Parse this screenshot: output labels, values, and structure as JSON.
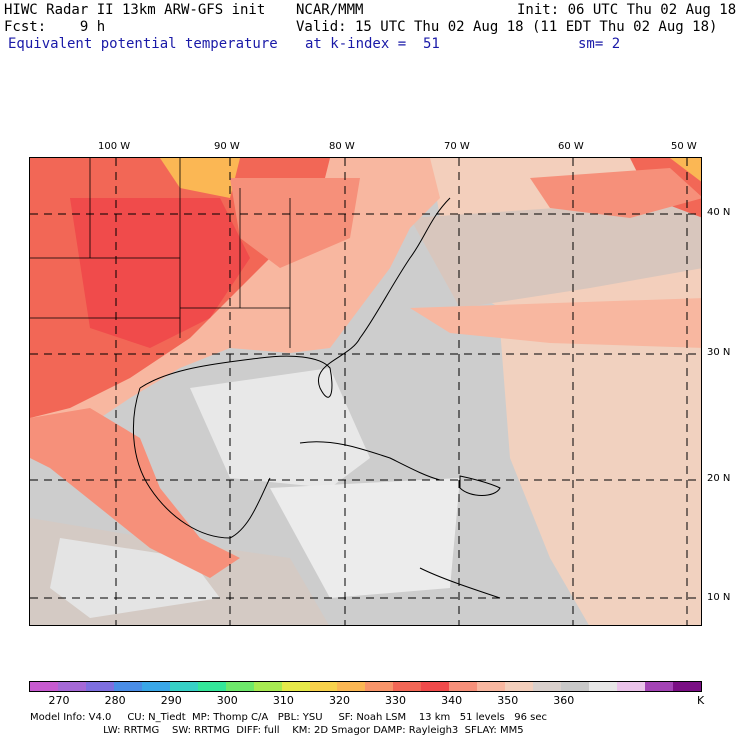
{
  "header": {
    "line1_left": "HIWC Radar II 13km ARW-GFS init",
    "line1_mid": "NCAR/MMM",
    "line1_right": "Init: 06 UTC Thu 02 Aug 18",
    "fcst": "Fcst:    9 h",
    "valid": "Valid: 15 UTC Thu 02 Aug 18 (11 EDT Thu 02 Aug 18)",
    "field": "Equivalent potential temperature",
    "level": "at k-index =  51",
    "smooth": "sm= 2"
  },
  "axes": {
    "lon_ticks": [
      "100 W",
      "90 W",
      "80 W",
      "70 W",
      "60 W",
      "50 W"
    ],
    "lat_ticks": [
      "40 N",
      "30 N",
      "20 N",
      "10 N"
    ]
  },
  "colorbar": {
    "colors": [
      "#c75bd0",
      "#a569d6",
      "#7e6fe0",
      "#4a8de6",
      "#3aa7e8",
      "#37d1c6",
      "#34e69a",
      "#6ee86b",
      "#a7ea52",
      "#e6e94a",
      "#f8d24c",
      "#fbb754",
      "#f8956a",
      "#f26756",
      "#f04b4b",
      "#f6907a",
      "#f8b7a0",
      "#f3cfbc",
      "#d9d0cc",
      "#c8c8c8",
      "#e6e6e6",
      "#eac3ea",
      "#a344b5",
      "#7a0f84"
    ],
    "labels": [
      "270",
      "280",
      "290",
      "300",
      "310",
      "320",
      "330",
      "340",
      "350",
      "360"
    ],
    "unit": "K"
  },
  "footer": {
    "line1": "Model Info: V4.0     CU: N_Tiedt  MP: Thomp C/A   PBL: YSU     SF: Noah LSM    13 km   51 levels   96 sec",
    "line2": "                       LW: RRTMG    SW: RRTMG  DIFF: full    KM: 2D Smagor DAMP: Rayleigh3  SFLAY: MM5"
  }
}
